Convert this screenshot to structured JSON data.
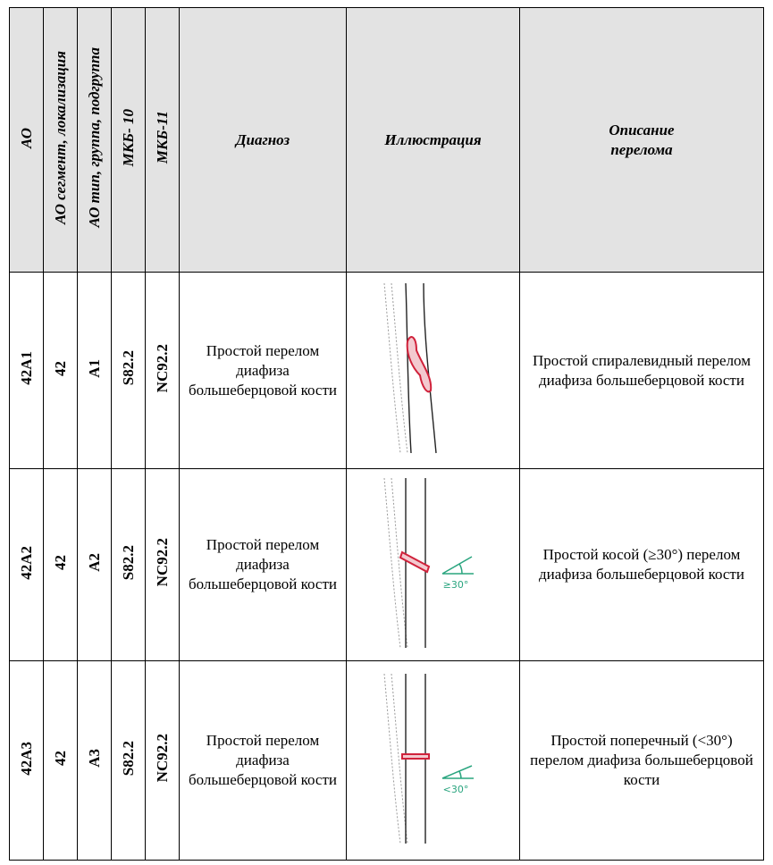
{
  "table": {
    "header": [
      "АО",
      "АО сегмент, локализация",
      "АО тип, группа, подгруппа",
      "МКБ- 10",
      "МКБ-11",
      "Диагноз",
      "Иллюстрация",
      "Описание перелома"
    ],
    "rows": [
      {
        "ao": "42A1",
        "segment": "42",
        "group": "A1",
        "icd10": "S82.2",
        "icd11": "NC92.2",
        "diagnosis": "Простой перелом диафиза большеберцовой кости",
        "description": "Простой спиралевидный перелом диафиза большеберцовой кости"
      },
      {
        "ao": "42A2",
        "segment": "42",
        "group": "A2",
        "icd10": "S82.2",
        "icd11": "NC92.2",
        "diagnosis": "Простой перелом диафиза большеберцовой кости",
        "description": "Простой косой (≥30°) перелом диафиза большеберцовой кости",
        "angle_label": "≥30°"
      },
      {
        "ao": "42A3",
        "segment": "42",
        "group": "A3",
        "icd10": "S82.2",
        "icd11": "NC92.2",
        "diagnosis": "Простой перелом диафиза большеберцовой кости",
        "description": "Простой поперечный (<30°) перелом диафиза большеберцовой кости",
        "angle_label": "<30°"
      }
    ]
  }
}
